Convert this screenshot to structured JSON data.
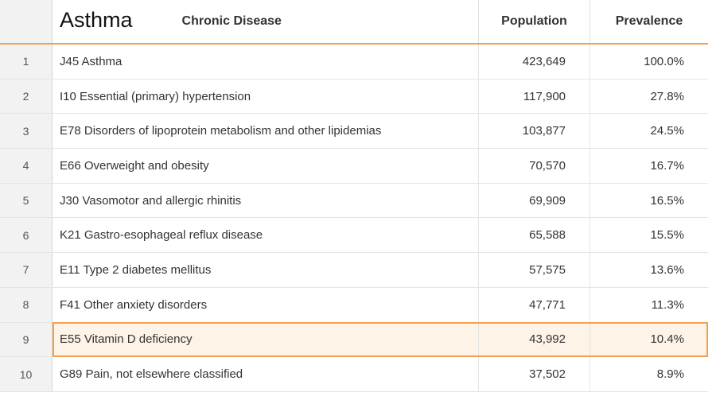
{
  "header": {
    "title": "Asthma",
    "subtitle": "Chronic Disease",
    "population_label": "Population",
    "prevalence_label": "Prevalence"
  },
  "selected_row": 9,
  "rows": [
    {
      "num": "1",
      "name": "J45 Asthma",
      "population": "423,649",
      "prevalence": "100.0%"
    },
    {
      "num": "2",
      "name": "I10 Essential (primary) hypertension",
      "population": "117,900",
      "prevalence": "27.8%"
    },
    {
      "num": "3",
      "name": "E78 Disorders of lipoprotein metabolism and other lipidemias",
      "population": "103,877",
      "prevalence": "24.5%"
    },
    {
      "num": "4",
      "name": "E66 Overweight and obesity",
      "population": "70,570",
      "prevalence": "16.7%"
    },
    {
      "num": "5",
      "name": "J30 Vasomotor and allergic rhinitis",
      "population": "69,909",
      "prevalence": "16.5%"
    },
    {
      "num": "6",
      "name": "K21 Gastro-esophageal reflux disease",
      "population": "65,588",
      "prevalence": "15.5%"
    },
    {
      "num": "7",
      "name": "E11 Type 2 diabetes mellitus",
      "population": "57,575",
      "prevalence": "13.6%"
    },
    {
      "num": "8",
      "name": "F41 Other anxiety disorders",
      "population": "47,771",
      "prevalence": "11.3%"
    },
    {
      "num": "9",
      "name": "E55 Vitamin D deficiency",
      "population": "43,992",
      "prevalence": "10.4%"
    },
    {
      "num": "10",
      "name": "G89 Pain, not elsewhere classified",
      "population": "37,502",
      "prevalence": "8.9%"
    }
  ]
}
